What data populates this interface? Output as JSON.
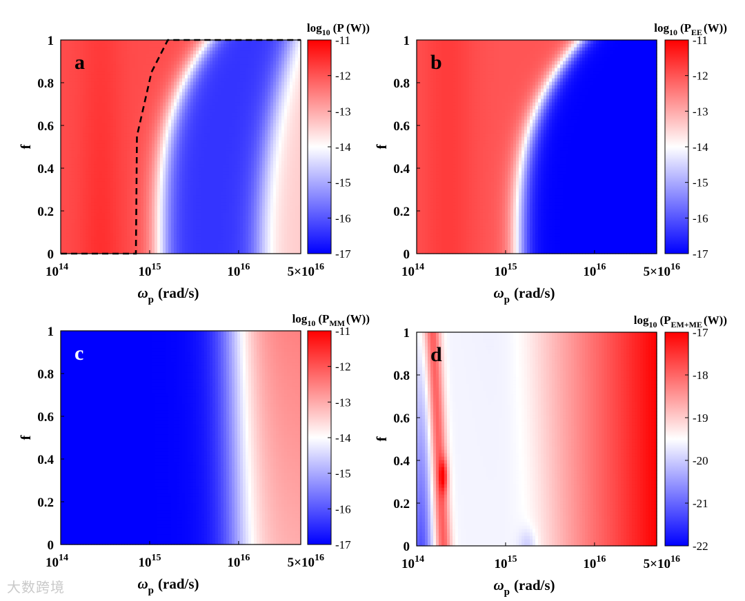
{
  "watermark": "大数跨境",
  "chart_data": [
    {
      "type": "heatmap",
      "panel": "a",
      "xlabel_main": "ω",
      "xlabel_sub": "p",
      "xlabel_unit": "(rad/s)",
      "ylabel": "f",
      "x_scale": "log",
      "xlim": [
        100000000000000.0,
        5e+16
      ],
      "ylim": [
        0,
        1
      ],
      "x_ticks": [
        {
          "base": "10",
          "exp": "14"
        },
        {
          "base": "10",
          "exp": "15"
        },
        {
          "base": "10",
          "exp": "16"
        },
        {
          "base": "5×10",
          "exp": "16"
        }
      ],
      "y_ticks": [
        "0",
        "0.2",
        "0.4",
        "0.6",
        "0.8",
        "1"
      ],
      "colorbar": {
        "title_main": "log",
        "title_sub": "10",
        "title_rest": "(P (W))",
        "title_subscript": "",
        "title_end": "",
        "range": [
          -17,
          -11
        ],
        "ticks": [
          "-11",
          "-12",
          "-13",
          "-14",
          "-15",
          "-16",
          "-17"
        ]
      },
      "overlay_dashed_boundary": [
        [
          100000000000000.0,
          0
        ],
        [
          700000000000000.0,
          0
        ],
        [
          720000000000000.0,
          0.55
        ],
        [
          1050000000000000.0,
          0.85
        ],
        [
          1600000000000000.0,
          1.0
        ],
        [
          5e+16,
          1.0
        ]
      ]
    },
    {
      "type": "heatmap",
      "panel": "b",
      "xlabel_main": "ω",
      "xlabel_sub": "p",
      "xlabel_unit": "(rad/s)",
      "ylabel": "f",
      "x_scale": "log",
      "xlim": [
        100000000000000.0,
        5e+16
      ],
      "ylim": [
        0,
        1
      ],
      "x_ticks": [
        {
          "base": "10",
          "exp": "14"
        },
        {
          "base": "10",
          "exp": "15"
        },
        {
          "base": "10",
          "exp": "16"
        },
        {
          "base": "5×10",
          "exp": "16"
        }
      ],
      "y_ticks": [
        "0",
        "0.2",
        "0.4",
        "0.6",
        "0.8",
        "1"
      ],
      "colorbar": {
        "title_main": "log",
        "title_sub": "10",
        "title_rest": "(P",
        "title_subscript": "EE",
        "title_end": "(W))",
        "range": [
          -17,
          -11
        ],
        "ticks": [
          "-11",
          "-12",
          "-13",
          "-14",
          "-15",
          "-16",
          "-17"
        ]
      }
    },
    {
      "type": "heatmap",
      "panel": "c",
      "xlabel_main": "ω",
      "xlabel_sub": "p",
      "xlabel_unit": "(rad/s)",
      "ylabel": "f",
      "x_scale": "log",
      "xlim": [
        100000000000000.0,
        5e+16
      ],
      "ylim": [
        0,
        1
      ],
      "x_ticks": [
        {
          "base": "10",
          "exp": "14"
        },
        {
          "base": "10",
          "exp": "15"
        },
        {
          "base": "10",
          "exp": "16"
        },
        {
          "base": "5×10",
          "exp": "16"
        }
      ],
      "y_ticks": [
        "0",
        "0.2",
        "0.4",
        "0.6",
        "0.8",
        "1"
      ],
      "colorbar": {
        "title_main": "log",
        "title_sub": "10",
        "title_rest": "(P",
        "title_subscript": "MM",
        "title_end": "(W))",
        "range": [
          -17,
          -11
        ],
        "ticks": [
          "-11",
          "-12",
          "-13",
          "-14",
          "-15",
          "-16",
          "-17"
        ]
      }
    },
    {
      "type": "heatmap",
      "panel": "d",
      "xlabel_main": "ω",
      "xlabel_sub": "p",
      "xlabel_unit": "(rad/s)",
      "ylabel": "f",
      "x_scale": "log",
      "xlim": [
        100000000000000.0,
        5e+16
      ],
      "ylim": [
        0,
        1
      ],
      "x_ticks": [
        {
          "base": "10",
          "exp": "14"
        },
        {
          "base": "10",
          "exp": "15"
        },
        {
          "base": "10",
          "exp": "16"
        },
        {
          "base": "5×10",
          "exp": "16"
        }
      ],
      "y_ticks": [
        "0",
        "0.2",
        "0.4",
        "0.6",
        "0.8",
        "1"
      ],
      "colorbar": {
        "title_main": "log",
        "title_sub": "10",
        "title_rest": "(P",
        "title_subscript": "EM+ME",
        "title_end": "(W))",
        "range": [
          -22,
          -17
        ],
        "ticks": [
          "-17",
          "-18",
          "-19",
          "-20",
          "-21",
          "-22"
        ]
      }
    }
  ]
}
